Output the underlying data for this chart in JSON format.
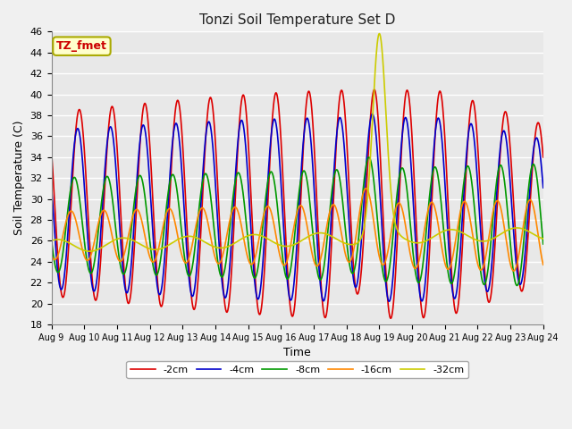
{
  "title": "Tonzi Soil Temperature Set D",
  "xlabel": "Time",
  "ylabel": "Soil Temperature (C)",
  "ylim": [
    18,
    46
  ],
  "series_labels": [
    "-2cm",
    "-4cm",
    "-8cm",
    "-16cm",
    "-32cm"
  ],
  "series_colors": [
    "#dd0000",
    "#0000cc",
    "#009900",
    "#ff8800",
    "#cccc00"
  ],
  "legend_label": "TZ_fmet",
  "legend_box_bg": "#ffffcc",
  "legend_box_edge": "#aaaa00",
  "legend_text_color": "#cc0000",
  "background_color": "#f0f0f0",
  "plot_bg_color": "#e8e8e8",
  "tick_labels": [
    "Aug 9",
    "Aug 10",
    "Aug 11",
    "Aug 12",
    "Aug 13",
    "Aug 14",
    "Aug 15",
    "Aug 16",
    "Aug 17",
    "Aug 18",
    "Aug 19",
    "Aug 20",
    "Aug 21",
    "Aug 22",
    "Aug 23",
    "Aug 24"
  ],
  "grid_color": "#ffffff",
  "grid_linewidth": 1.0
}
